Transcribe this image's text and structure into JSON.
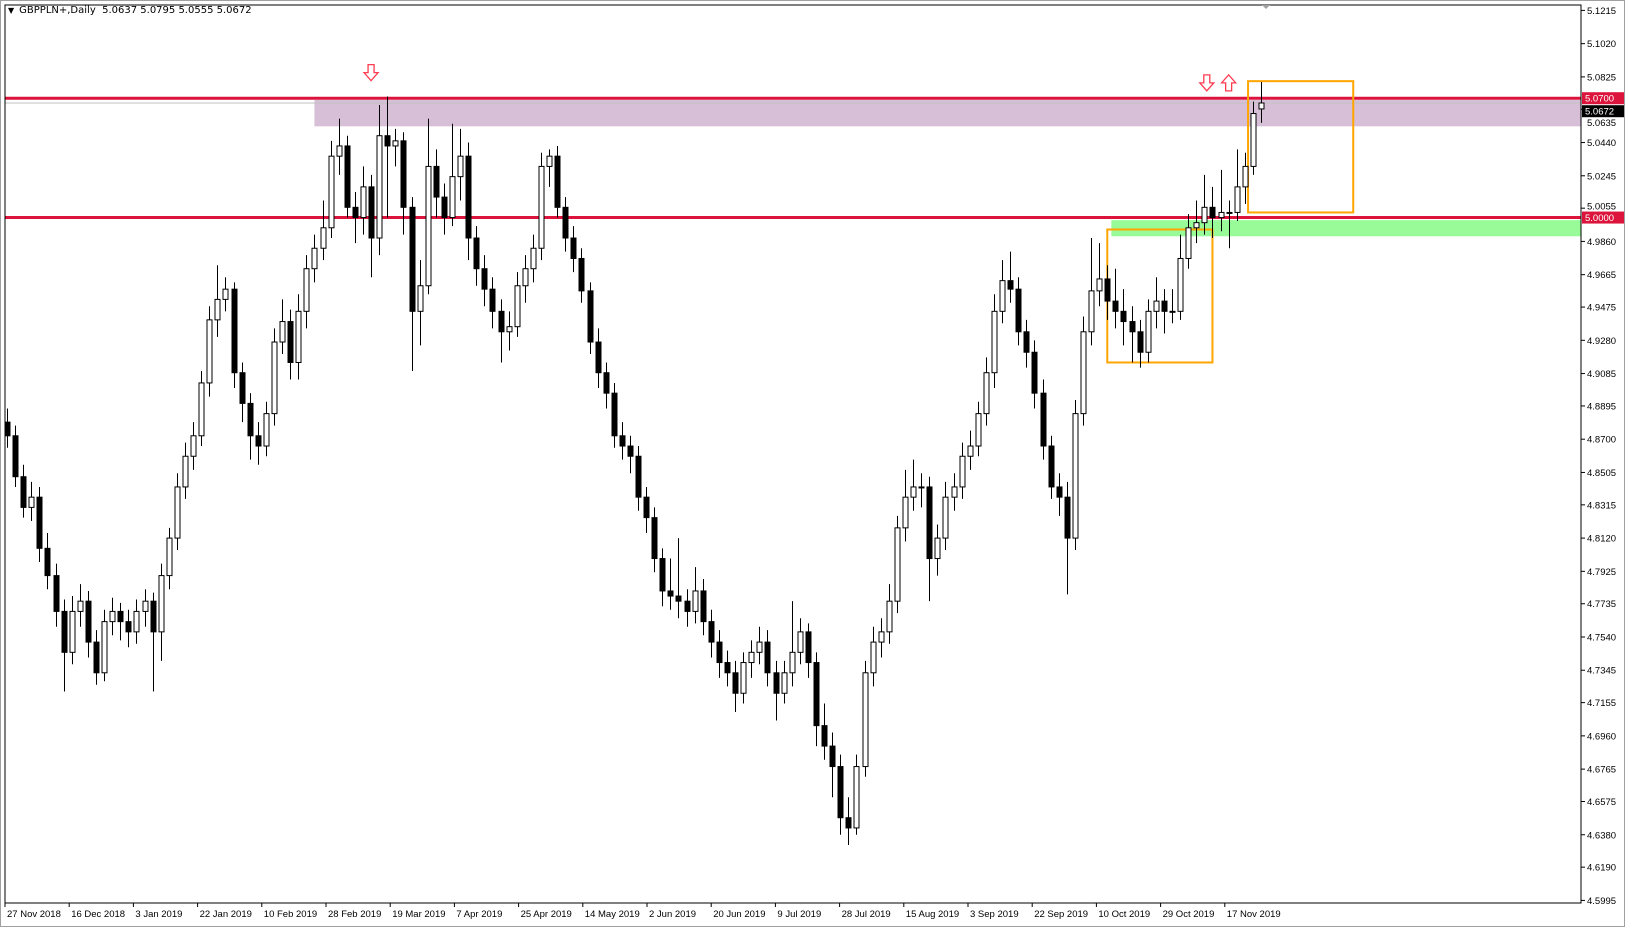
{
  "header": {
    "menu_icon": "triangle-down-icon",
    "symbol": "GBPPLN+,Daily",
    "ohlc": "5.0637 5.0795 5.0555 5.0672"
  },
  "colors": {
    "background": "#ffffff",
    "candle_bull_fill": "#ffffff",
    "candle_bear_fill": "#000000",
    "level_line": "#dc143c",
    "bid_line": "#c0c0c0",
    "resistance_zone": "#d8bfd8",
    "support_zone": "#98fb98",
    "box": "#ffa500",
    "arrow": "#ff3c50"
  },
  "chart_data": {
    "type": "candlestick",
    "title": "GBPPLN+,Daily",
    "ylim": [
      4.5995,
      5.1215
    ],
    "grid": false,
    "y_ticks": [
      "5.1215",
      "5.1020",
      "5.0825",
      "5.0635",
      "5.0440",
      "5.0245",
      "5.0055",
      "4.9860",
      "4.9665",
      "4.9475",
      "4.9280",
      "4.9085",
      "4.8895",
      "4.8700",
      "4.8505",
      "4.8315",
      "4.8120",
      "4.7925",
      "4.7735",
      "4.7540",
      "4.7345",
      "4.7155",
      "4.6960",
      "4.6765",
      "4.6575",
      "4.6380",
      "4.6190",
      "4.5995"
    ],
    "x_ticks": [
      "27 Nov 2018",
      "16 Dec 2018",
      "3 Jan 2019",
      "22 Jan 2019",
      "10 Feb 2019",
      "28 Feb 2019",
      "19 Mar 2019",
      "7 Apr 2019",
      "25 Apr 2019",
      "14 May 2019",
      "2 Jun 2019",
      "20 Jun 2019",
      "9 Jul 2019",
      "28 Jul 2019",
      "15 Aug 2019",
      "3 Sep 2019",
      "22 Sep 2019",
      "10 Oct 2019",
      "29 Oct 2019",
      "17 Nov 2019"
    ],
    "candles_ohlc": [
      [
        4.88,
        4.888,
        4.865,
        4.872
      ],
      [
        4.872,
        4.878,
        4.842,
        4.848
      ],
      [
        4.848,
        4.855,
        4.824,
        4.83
      ],
      [
        4.83,
        4.845,
        4.822,
        4.836
      ],
      [
        4.836,
        4.842,
        4.798,
        4.806
      ],
      [
        4.806,
        4.815,
        4.782,
        4.79
      ],
      [
        4.79,
        4.797,
        4.76,
        4.769
      ],
      [
        4.769,
        4.776,
        4.722,
        4.745
      ],
      [
        4.745,
        4.778,
        4.738,
        4.769
      ],
      [
        4.769,
        4.785,
        4.76,
        4.775
      ],
      [
        4.775,
        4.781,
        4.742,
        4.751
      ],
      [
        4.751,
        4.758,
        4.726,
        4.733
      ],
      [
        4.733,
        4.77,
        4.728,
        4.763
      ],
      [
        4.763,
        4.777,
        4.755,
        4.769
      ],
      [
        4.769,
        4.774,
        4.752,
        4.763
      ],
      [
        4.763,
        4.77,
        4.748,
        4.757
      ],
      [
        4.757,
        4.776,
        4.75,
        4.769
      ],
      [
        4.769,
        4.782,
        4.76,
        4.775
      ],
      [
        4.775,
        4.78,
        4.722,
        4.757
      ],
      [
        4.757,
        4.797,
        4.74,
        4.79
      ],
      [
        4.79,
        4.818,
        4.782,
        4.812
      ],
      [
        4.812,
        4.85,
        4.805,
        4.842
      ],
      [
        4.842,
        4.868,
        4.835,
        4.86
      ],
      [
        4.86,
        4.88,
        4.852,
        4.872
      ],
      [
        4.872,
        4.91,
        4.866,
        4.903
      ],
      [
        4.903,
        4.948,
        4.895,
        4.94
      ],
      [
        4.94,
        4.972,
        4.93,
        4.952
      ],
      [
        4.952,
        4.965,
        4.945,
        4.958
      ],
      [
        4.958,
        4.962,
        4.9,
        4.909
      ],
      [
        4.909,
        4.915,
        4.88,
        4.891
      ],
      [
        4.891,
        4.897,
        4.858,
        4.872
      ],
      [
        4.872,
        4.88,
        4.855,
        4.866
      ],
      [
        4.866,
        4.892,
        4.86,
        4.885
      ],
      [
        4.885,
        4.935,
        4.878,
        4.927
      ],
      [
        4.927,
        4.952,
        4.92,
        4.939
      ],
      [
        4.939,
        4.946,
        4.905,
        4.915
      ],
      [
        4.915,
        4.955,
        4.905,
        4.945
      ],
      [
        4.945,
        4.978,
        4.935,
        4.97
      ],
      [
        4.97,
        4.99,
        4.962,
        4.982
      ],
      [
        4.982,
        5.01,
        4.975,
        4.994
      ],
      [
        4.994,
        5.045,
        4.988,
        5.036
      ],
      [
        5.036,
        5.058,
        5.025,
        5.042
      ],
      [
        5.042,
        5.048,
        5.0,
        5.006
      ],
      [
        5.006,
        5.015,
        4.985,
        5.0
      ],
      [
        5.0,
        5.03,
        4.99,
        5.018
      ],
      [
        5.018,
        5.025,
        4.965,
        4.988
      ],
      [
        4.988,
        5.066,
        4.978,
        5.048
      ],
      [
        5.048,
        5.071,
        5.0,
        5.042
      ],
      [
        5.042,
        5.052,
        5.03,
        5.045
      ],
      [
        5.045,
        5.05,
        4.99,
        5.006
      ],
      [
        5.006,
        5.012,
        4.91,
        4.945
      ],
      [
        4.945,
        4.975,
        4.925,
        4.96
      ],
      [
        4.96,
        5.058,
        4.955,
        5.03
      ],
      [
        5.03,
        5.04,
        5.0,
        5.012
      ],
      [
        5.012,
        5.02,
        4.99,
        5.0
      ],
      [
        5.0,
        5.055,
        4.995,
        5.024
      ],
      [
        5.024,
        5.052,
        5.01,
        5.036
      ],
      [
        5.036,
        5.044,
        4.975,
        4.988
      ],
      [
        4.988,
        4.995,
        4.96,
        4.97
      ],
      [
        4.97,
        4.978,
        4.948,
        4.958
      ],
      [
        4.958,
        4.965,
        4.935,
        4.945
      ],
      [
        4.945,
        4.952,
        4.915,
        4.933
      ],
      [
        4.933,
        4.945,
        4.922,
        4.936
      ],
      [
        4.936,
        4.968,
        4.93,
        4.96
      ],
      [
        4.96,
        4.978,
        4.95,
        4.97
      ],
      [
        4.97,
        4.99,
        4.962,
        4.982
      ],
      [
        4.982,
        5.038,
        4.975,
        5.03
      ],
      [
        5.03,
        5.04,
        5.018,
        5.036
      ],
      [
        5.036,
        5.042,
        5.0,
        5.006
      ],
      [
        5.006,
        5.012,
        4.98,
        4.988
      ],
      [
        4.988,
        4.995,
        4.968,
        4.976
      ],
      [
        4.976,
        4.982,
        4.95,
        4.957
      ],
      [
        4.957,
        4.962,
        4.92,
        4.927
      ],
      [
        4.927,
        4.935,
        4.9,
        4.909
      ],
      [
        4.909,
        4.915,
        4.888,
        4.897
      ],
      [
        4.897,
        4.903,
        4.865,
        4.872
      ],
      [
        4.872,
        4.88,
        4.858,
        4.866
      ],
      [
        4.866,
        4.872,
        4.85,
        4.86
      ],
      [
        4.86,
        4.866,
        4.828,
        4.836
      ],
      [
        4.836,
        4.842,
        4.815,
        4.824
      ],
      [
        4.824,
        4.83,
        4.792,
        4.8
      ],
      [
        4.8,
        4.806,
        4.772,
        4.781
      ],
      [
        4.781,
        4.8,
        4.77,
        4.778
      ],
      [
        4.778,
        4.812,
        4.765,
        4.775
      ],
      [
        4.775,
        4.782,
        4.76,
        4.769
      ],
      [
        4.769,
        4.795,
        4.762,
        4.781
      ],
      [
        4.781,
        4.788,
        4.755,
        4.763
      ],
      [
        4.763,
        4.77,
        4.742,
        4.751
      ],
      [
        4.751,
        4.758,
        4.73,
        4.739
      ],
      [
        4.739,
        4.746,
        4.725,
        4.733
      ],
      [
        4.733,
        4.74,
        4.71,
        4.721
      ],
      [
        4.721,
        4.745,
        4.715,
        4.739
      ],
      [
        4.739,
        4.752,
        4.73,
        4.745
      ],
      [
        4.745,
        4.76,
        4.738,
        4.751
      ],
      [
        4.751,
        4.758,
        4.725,
        4.733
      ],
      [
        4.733,
        4.74,
        4.705,
        4.721
      ],
      [
        4.721,
        4.74,
        4.715,
        4.733
      ],
      [
        4.733,
        4.775,
        4.725,
        4.745
      ],
      [
        4.745,
        4.765,
        4.738,
        4.757
      ],
      [
        4.757,
        4.762,
        4.73,
        4.739
      ],
      [
        4.739,
        4.745,
        4.69,
        4.702
      ],
      [
        4.702,
        4.715,
        4.682,
        4.69
      ],
      [
        4.69,
        4.698,
        4.66,
        4.678
      ],
      [
        4.678,
        4.685,
        4.638,
        4.648
      ],
      [
        4.648,
        4.66,
        4.632,
        4.642
      ],
      [
        4.642,
        4.685,
        4.638,
        4.678
      ],
      [
        4.678,
        4.74,
        4.672,
        4.733
      ],
      [
        4.733,
        4.76,
        4.725,
        4.751
      ],
      [
        4.751,
        4.765,
        4.742,
        4.757
      ],
      [
        4.757,
        4.785,
        4.75,
        4.775
      ],
      [
        4.775,
        4.825,
        4.768,
        4.818
      ],
      [
        4.818,
        4.852,
        4.81,
        4.836
      ],
      [
        4.836,
        4.858,
        4.828,
        4.842
      ],
      [
        4.842,
        4.85,
        4.83,
        4.842
      ],
      [
        4.842,
        4.848,
        4.775,
        4.8
      ],
      [
        4.8,
        4.82,
        4.79,
        4.812
      ],
      [
        4.812,
        4.845,
        4.805,
        4.836
      ],
      [
        4.836,
        4.85,
        4.828,
        4.842
      ],
      [
        4.842,
        4.868,
        4.835,
        4.86
      ],
      [
        4.86,
        4.875,
        4.852,
        4.866
      ],
      [
        4.866,
        4.892,
        4.86,
        4.885
      ],
      [
        4.885,
        4.918,
        4.878,
        4.909
      ],
      [
        4.909,
        4.955,
        4.9,
        4.945
      ],
      [
        4.945,
        4.975,
        4.938,
        4.963
      ],
      [
        4.963,
        4.98,
        4.95,
        4.958
      ],
      [
        4.958,
        4.965,
        4.925,
        4.933
      ],
      [
        4.933,
        4.94,
        4.912,
        4.921
      ],
      [
        4.921,
        4.928,
        4.888,
        4.897
      ],
      [
        4.897,
        4.905,
        4.858,
        4.866
      ],
      [
        4.866,
        4.872,
        4.835,
        4.842
      ],
      [
        4.842,
        4.85,
        4.825,
        4.836
      ],
      [
        4.836,
        4.845,
        4.779,
        4.812
      ],
      [
        4.812,
        4.893,
        4.805,
        4.885
      ],
      [
        4.885,
        4.942,
        4.878,
        4.933
      ],
      [
        4.933,
        4.988,
        4.925,
        4.957
      ],
      [
        4.957,
        4.985,
        4.948,
        4.964
      ],
      [
        4.964,
        4.972,
        4.94,
        4.951
      ],
      [
        4.951,
        4.97,
        4.935,
        4.945
      ],
      [
        4.945,
        4.958,
        4.925,
        4.939
      ],
      [
        4.939,
        4.948,
        4.915,
        4.933
      ],
      [
        4.933,
        4.94,
        4.912,
        4.921
      ],
      [
        4.921,
        4.952,
        4.915,
        4.945
      ],
      [
        4.945,
        4.965,
        4.935,
        4.951
      ],
      [
        4.951,
        4.958,
        4.932,
        4.945
      ],
      [
        4.945,
        4.958,
        4.938,
        4.945
      ],
      [
        4.945,
        4.99,
        4.94,
        4.976
      ],
      [
        4.976,
        5.002,
        4.97,
        4.994
      ],
      [
        4.994,
        5.01,
        4.985,
        4.997
      ],
      [
        4.997,
        5.025,
        4.99,
        5.006
      ],
      [
        5.006,
        5.018,
        4.988,
        5.0
      ],
      [
        5.0,
        5.028,
        4.992,
        5.003
      ],
      [
        5.003,
        5.01,
        4.982,
        5.003
      ],
      [
        5.003,
        5.04,
        4.998,
        5.018
      ],
      [
        5.018,
        5.038,
        5.008,
        5.03
      ],
      [
        5.03,
        5.068,
        5.025,
        5.061
      ],
      [
        5.0637,
        5.0795,
        5.0555,
        5.0672
      ]
    ],
    "levels": [
      {
        "price": 5.07,
        "label": "5.0700"
      },
      {
        "price": 5.0,
        "label": "5.0000"
      }
    ],
    "bid": {
      "price": 5.0672,
      "label": "5.0672"
    },
    "zones": [
      {
        "kind": "resistance",
        "from_bar": 38,
        "price_low": 5.0535,
        "price_high": 5.069
      },
      {
        "kind": "support",
        "from_bar": 136.5,
        "price_low": 4.989,
        "price_high": 4.9985
      }
    ],
    "boxes": [
      {
        "from_bar": 136,
        "to_bar": 149,
        "price_low": 4.915,
        "price_high": 4.993
      },
      {
        "from_bar": 153.4,
        "to_bar": 166.4,
        "price_low": 5.003,
        "price_high": 5.08
      }
    ],
    "arrows": [
      {
        "direction": "down",
        "bar": 45,
        "price": 5.085
      },
      {
        "direction": "down",
        "bar": 148.3,
        "price": 5.079
      },
      {
        "direction": "up",
        "bar": 151,
        "price": 5.079
      }
    ]
  }
}
